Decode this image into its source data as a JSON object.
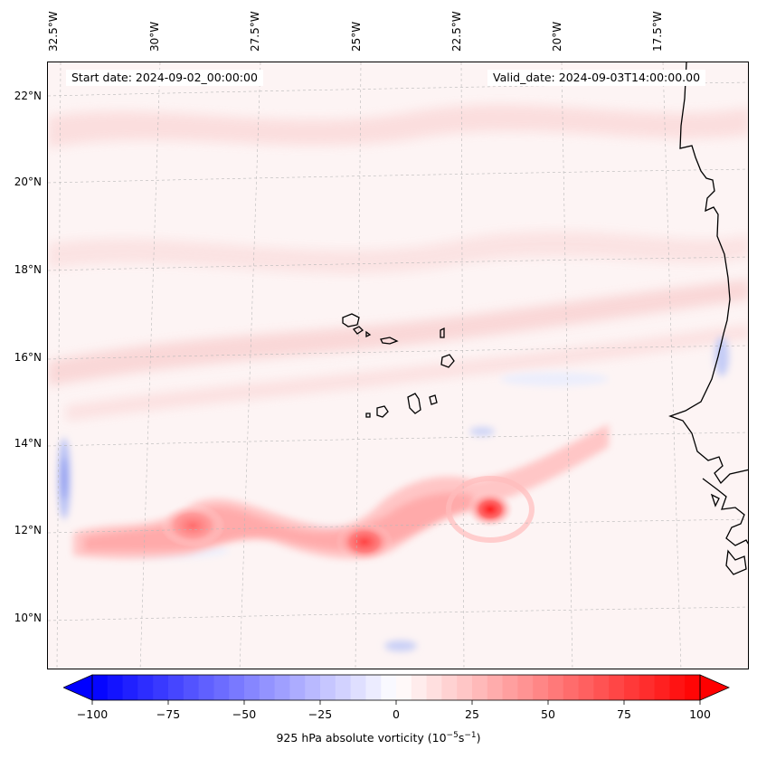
{
  "header": {
    "start_date": "Start date: 2024-09-02_00:00:00",
    "valid_date": "Valid_date: 2024-09-03T14:00:00.00"
  },
  "map": {
    "longitude_labels": [
      "32.5°W",
      "30°W",
      "27.5°W",
      "25°W",
      "22.5°W",
      "20°W",
      "17.5°W"
    ],
    "latitude_labels": [
      "22°N",
      "20°N",
      "18°N",
      "16°N",
      "14°N",
      "12°N",
      "10°N"
    ],
    "features": [
      "coastline-west-africa",
      "cape-verde-islands",
      "vorticity-maxima"
    ],
    "colors": {
      "positive": "#ff0000",
      "negative": "#0000ff",
      "zero": "#ffffff",
      "coastline": "#000000"
    }
  },
  "colorbar": {
    "vmin": -100,
    "vmax": 100,
    "tick_labels": [
      "−100",
      "−75",
      "−50",
      "−25",
      "0",
      "25",
      "50",
      "75",
      "100"
    ],
    "label_text": "925 hPa absolute vorticity (10",
    "label_exp1": "−5",
    "label_mid": "s",
    "label_exp2": "−1",
    "label_end": ")"
  }
}
